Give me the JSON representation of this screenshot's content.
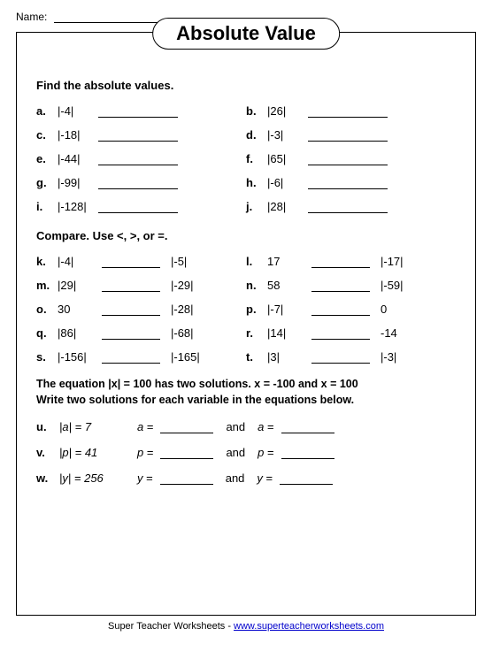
{
  "header": {
    "name_label": "Name:"
  },
  "title": "Absolute Value",
  "section1": {
    "heading": "Find the absolute values.",
    "items": [
      {
        "l": "a.",
        "e": "|-4|"
      },
      {
        "l": "b.",
        "e": "|26|"
      },
      {
        "l": "c.",
        "e": "|-18|"
      },
      {
        "l": "d.",
        "e": "|-3|"
      },
      {
        "l": "e.",
        "e": "|-44|"
      },
      {
        "l": "f.",
        "e": "|65|"
      },
      {
        "l": "g.",
        "e": "|-99|"
      },
      {
        "l": "h.",
        "e": "|-6|"
      },
      {
        "l": "i.",
        "e": "|-128|"
      },
      {
        "l": "j.",
        "e": "|28|"
      }
    ]
  },
  "section2": {
    "heading": "Compare.  Use <, >, or =.",
    "items": [
      {
        "l": "k.",
        "a": "|-4|",
        "b": "|-5|"
      },
      {
        "l": "l.",
        "a": "17",
        "b": "|-17|"
      },
      {
        "l": "m.",
        "a": "|29|",
        "b": "|-29|"
      },
      {
        "l": "n.",
        "a": "58",
        "b": "|-59|"
      },
      {
        "l": "o.",
        "a": "30",
        "b": "|-28|"
      },
      {
        "l": "p.",
        "a": "|-7|",
        "b": "0"
      },
      {
        "l": "q.",
        "a": "|86|",
        "b": "|-68|"
      },
      {
        "l": "r.",
        "a": "|14|",
        "b": "-14"
      },
      {
        "l": "s.",
        "a": "|-156|",
        "b": "|-165|"
      },
      {
        "l": "t.",
        "a": "|3|",
        "b": "|-3|"
      }
    ]
  },
  "section3": {
    "intro1": "The equation |x| = 100 has two solutions.  x = -100  and  x = 100",
    "intro2": "Write two solutions for each variable in the equations below.",
    "items": [
      {
        "l": "u.",
        "eq": "|a| = 7",
        "v": "a"
      },
      {
        "l": "v.",
        "eq": "|p| = 41",
        "v": "p"
      },
      {
        "l": "w.",
        "eq": "|y| = 256",
        "v": "y"
      }
    ]
  },
  "footer": {
    "text": "Super Teacher Worksheets  -  ",
    "link": "www.superteacherworksheets.com"
  },
  "and_word": "and",
  "equals": " = "
}
